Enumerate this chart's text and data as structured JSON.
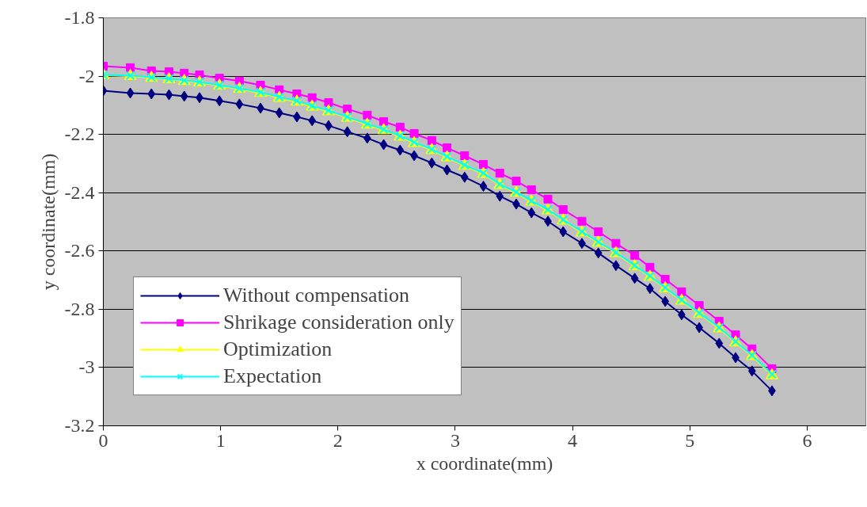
{
  "chart_data": {
    "type": "line",
    "xlabel": "x coordinate(mm)",
    "ylabel": "y coordinate(mm)",
    "x": [
      0,
      0.23,
      0.41,
      0.56,
      0.69,
      0.82,
      0.99,
      1.16,
      1.34,
      1.5,
      1.65,
      1.78,
      1.92,
      2.08,
      2.25,
      2.39,
      2.53,
      2.65,
      2.8,
      2.93,
      3.08,
      3.24,
      3.38,
      3.52,
      3.65,
      3.79,
      3.92,
      4.08,
      4.22,
      4.37,
      4.53,
      4.66,
      4.79,
      4.93,
      5.08,
      5.25,
      5.39,
      5.53,
      5.7
    ],
    "series": [
      {
        "name": "Without compensation",
        "color": "#000080",
        "marker": "diamond",
        "values": [
          -2.05,
          -2.058,
          -2.061,
          -2.064,
          -2.069,
          -2.074,
          -2.085,
          -2.096,
          -2.11,
          -2.126,
          -2.14,
          -2.153,
          -2.17,
          -2.191,
          -2.213,
          -2.235,
          -2.254,
          -2.273,
          -2.298,
          -2.322,
          -2.347,
          -2.378,
          -2.412,
          -2.439,
          -2.469,
          -2.498,
          -2.534,
          -2.574,
          -2.607,
          -2.65,
          -2.694,
          -2.729,
          -2.773,
          -2.819,
          -2.863,
          -2.917,
          -2.966,
          -3.012,
          -3.08
        ]
      },
      {
        "name": "Shrikage consideration only",
        "color": "#ff00ff",
        "marker": "square",
        "values": [
          -1.966,
          -1.971,
          -1.982,
          -1.985,
          -1.99,
          -1.996,
          -2.007,
          -2.017,
          -2.031,
          -2.047,
          -2.061,
          -2.074,
          -2.091,
          -2.113,
          -2.134,
          -2.156,
          -2.175,
          -2.197,
          -2.221,
          -2.246,
          -2.273,
          -2.303,
          -2.333,
          -2.36,
          -2.39,
          -2.422,
          -2.458,
          -2.498,
          -2.534,
          -2.574,
          -2.615,
          -2.656,
          -2.697,
          -2.74,
          -2.787,
          -2.841,
          -2.888,
          -2.936,
          -3.004
        ]
      },
      {
        "name": "Optimization",
        "color": "#ffff00",
        "marker": "triangle",
        "values": [
          -1.997,
          -2.0,
          -2.006,
          -2.011,
          -2.017,
          -2.022,
          -2.033,
          -2.044,
          -2.058,
          -2.075,
          -2.088,
          -2.105,
          -2.121,
          -2.143,
          -2.167,
          -2.186,
          -2.208,
          -2.23,
          -2.254,
          -2.279,
          -2.308,
          -2.336,
          -2.374,
          -2.401,
          -2.431,
          -2.461,
          -2.496,
          -2.537,
          -2.572,
          -2.608,
          -2.653,
          -2.689,
          -2.729,
          -2.771,
          -2.816,
          -2.866,
          -2.914,
          -2.961,
          -3.027
        ]
      },
      {
        "name": "Expectation",
        "color": "#00ffff",
        "marker": "cross",
        "values": [
          -1.996,
          -1.998,
          -2.004,
          -2.009,
          -2.015,
          -2.02,
          -2.031,
          -2.042,
          -2.055,
          -2.072,
          -2.085,
          -2.102,
          -2.118,
          -2.14,
          -2.164,
          -2.183,
          -2.205,
          -2.227,
          -2.251,
          -2.276,
          -2.305,
          -2.333,
          -2.371,
          -2.398,
          -2.428,
          -2.458,
          -2.493,
          -2.534,
          -2.569,
          -2.605,
          -2.65,
          -2.686,
          -2.726,
          -2.768,
          -2.813,
          -2.863,
          -2.911,
          -2.958,
          -3.023
        ]
      }
    ],
    "xlim": [
      0,
      6.5
    ],
    "xticks": [
      0,
      1,
      2,
      3,
      4,
      5,
      6
    ],
    "ylim": [
      -3.2,
      -1.8
    ],
    "yticks": [
      -3.2,
      -3,
      -2.8,
      -2.6,
      -2.4,
      -2.2,
      -2,
      -1.8
    ],
    "grid": "y",
    "legend": "bottom left",
    "line_style": "solid"
  }
}
